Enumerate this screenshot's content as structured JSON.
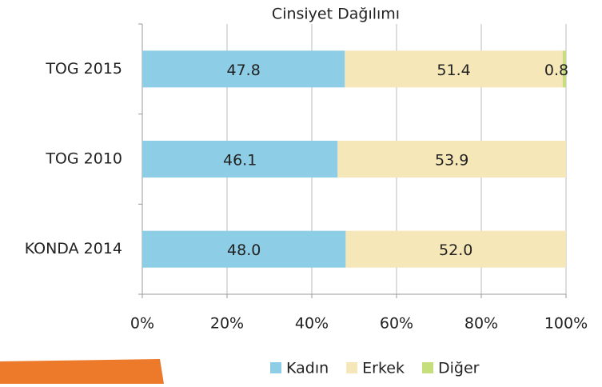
{
  "chart_data": {
    "type": "stacked_bar_horizontal",
    "title": "Cinsiyet Dağılımı",
    "categories": [
      "TOG 2015",
      "TOG 2010",
      "KONDA 2014"
    ],
    "series": [
      {
        "name": "Kadın",
        "color": "#8ecde6",
        "values": [
          47.8,
          46.1,
          48.0
        ],
        "value_labels": [
          "47.8",
          "46.1",
          "48.0"
        ]
      },
      {
        "name": "Erkek",
        "color": "#f6e7b8",
        "values": [
          51.4,
          53.9,
          52.0
        ],
        "value_labels": [
          "51.4",
          "53.9",
          "52.0"
        ]
      },
      {
        "name": "Diğer",
        "color": "#c6df7c",
        "values": [
          0.8,
          null,
          null
        ],
        "value_labels": [
          "0.8",
          null,
          null
        ]
      }
    ],
    "xlim": [
      0,
      100
    ],
    "xticks": [
      {
        "value": 0,
        "label": "0%"
      },
      {
        "value": 20,
        "label": "20%"
      },
      {
        "value": 40,
        "label": "40%"
      },
      {
        "value": 60,
        "label": "60%"
      },
      {
        "value": 80,
        "label": "80%"
      },
      {
        "value": 100,
        "label": "100%"
      }
    ],
    "grid": true,
    "legend": "bottom"
  }
}
